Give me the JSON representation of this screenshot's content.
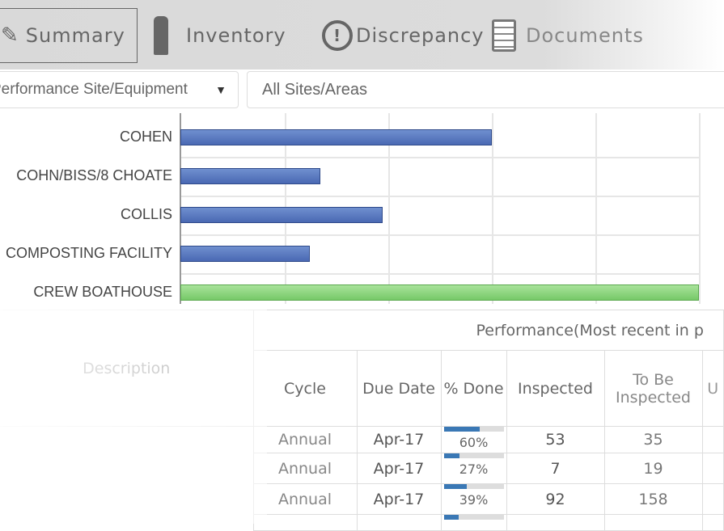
{
  "tabs": [
    {
      "label": "Summary",
      "icon": "summary-icon"
    },
    {
      "label": "Inventory",
      "icon": "fire-extinguisher-icon"
    },
    {
      "label": "Discrepancy",
      "icon": "exclamation-circle-icon"
    },
    {
      "label": "Documents",
      "icon": "documents-icon"
    }
  ],
  "filters": {
    "report_type": "Performance Site/Equipment",
    "site": "All Sites/Areas"
  },
  "chart_data": {
    "type": "bar",
    "orientation": "horizontal",
    "categories": [
      "COHEN",
      "COHN/BISS/8 CHOATE",
      "COLLIS",
      "COMPOSTING FACILITY",
      "CREW BOATHOUSE"
    ],
    "values": [
      60,
      27,
      39,
      25,
      100
    ],
    "xlim": [
      0,
      100
    ],
    "grid": true,
    "colors": [
      "#4a69b3",
      "#4a69b3",
      "#4a69b3",
      "#4a69b3",
      "#76c968"
    ]
  },
  "table": {
    "group_header": "Performance(Most recent in p",
    "headers": {
      "description": "Description",
      "cycle": "Cycle",
      "due": "Due Date",
      "done": "% Done",
      "inspected": "Inspected",
      "tobe": "To Be Inspected",
      "u": "U"
    },
    "rows": [
      {
        "cycle": "Annual",
        "due": "Apr-17",
        "pct": 60,
        "pct_label": "60%",
        "inspected": "53",
        "tobe": "35"
      },
      {
        "cycle": "Annual",
        "due": "Apr-17",
        "pct": 27,
        "pct_label": "27%",
        "inspected": "7",
        "tobe": "19"
      },
      {
        "cycle": "Annual",
        "due": "Apr-17",
        "pct": 39,
        "pct_label": "39%",
        "inspected": "92",
        "tobe": "158"
      }
    ]
  }
}
